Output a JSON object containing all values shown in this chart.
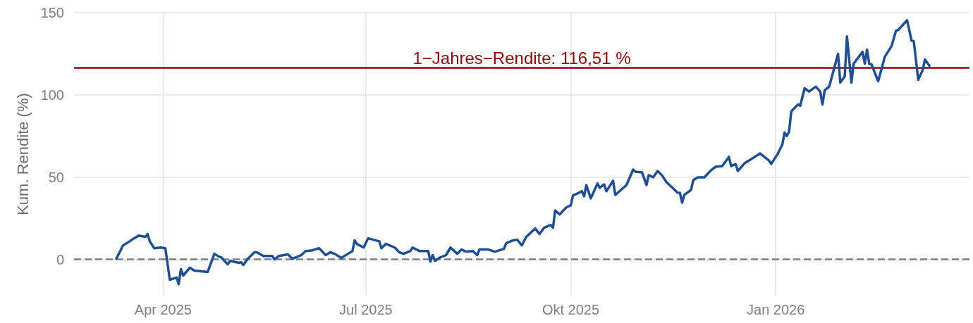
{
  "chart_data": {
    "type": "line",
    "ylabel": "Kum. Rendite (%)",
    "x": [
      "2025-03-11",
      "2025-03-14",
      "2025-03-17",
      "2025-03-19",
      "2025-03-21",
      "2025-03-24",
      "2025-03-25",
      "2025-03-26",
      "2025-03-28",
      "2025-03-31",
      "2025-04-02",
      "2025-04-04",
      "2025-04-07",
      "2025-04-08",
      "2025-04-09",
      "2025-04-10",
      "2025-04-13",
      "2025-04-15",
      "2025-04-21",
      "2025-04-24",
      "2025-04-26",
      "2025-04-27",
      "2025-04-30",
      "2025-05-01",
      "2025-05-05",
      "2025-05-06",
      "2025-05-07",
      "2025-05-09",
      "2025-05-12",
      "2025-05-13",
      "2025-05-16",
      "2025-05-20",
      "2025-05-21",
      "2025-05-23",
      "2025-05-27",
      "2025-05-29",
      "2025-06-02",
      "2025-06-04",
      "2025-06-07",
      "2025-06-10",
      "2025-06-13",
      "2025-06-15",
      "2025-06-17",
      "2025-06-20",
      "2025-06-23",
      "2025-06-25",
      "2025-06-26",
      "2025-06-27",
      "2025-06-30",
      "2025-07-02",
      "2025-07-07",
      "2025-07-08",
      "2025-07-10",
      "2025-07-14",
      "2025-07-16",
      "2025-07-18",
      "2025-07-21",
      "2025-07-22",
      "2025-07-25",
      "2025-07-29",
      "2025-07-30",
      "2025-07-31",
      "2025-08-01",
      "2025-08-03",
      "2025-08-06",
      "2025-08-08",
      "2025-08-11",
      "2025-08-13",
      "2025-08-15",
      "2025-08-18",
      "2025-08-20",
      "2025-08-21",
      "2025-08-25",
      "2025-08-28",
      "2025-09-01",
      "2025-09-02",
      "2025-09-05",
      "2025-09-07",
      "2025-09-09",
      "2025-09-11",
      "2025-09-15",
      "2025-09-17",
      "2025-09-19",
      "2025-09-22",
      "2025-09-23",
      "2025-09-24",
      "2025-09-26",
      "2025-09-29",
      "2025-10-01",
      "2025-10-02",
      "2025-10-06",
      "2025-10-07",
      "2025-10-08",
      "2025-10-10",
      "2025-10-13",
      "2025-10-14",
      "2025-10-16",
      "2025-10-17",
      "2025-10-20",
      "2025-10-21",
      "2025-10-26",
      "2025-10-29",
      "2025-10-30",
      "2025-11-02",
      "2025-11-04",
      "2025-11-05",
      "2025-11-07",
      "2025-11-09",
      "2025-11-11",
      "2025-11-13",
      "2025-11-16",
      "2025-11-18",
      "2025-11-19",
      "2025-11-20",
      "2025-11-21",
      "2025-11-24",
      "2025-11-25",
      "2025-11-27",
      "2025-11-30",
      "2025-12-03",
      "2025-12-05",
      "2025-12-08",
      "2025-12-11",
      "2025-12-12",
      "2025-12-14",
      "2025-12-15",
      "2025-12-18",
      "2025-12-22",
      "2025-12-25",
      "2025-12-29",
      "2025-12-30",
      "2026-01-02",
      "2026-01-04",
      "2026-01-05",
      "2026-01-06",
      "2026-01-07",
      "2026-01-08",
      "2026-01-11",
      "2026-01-12",
      "2026-01-14",
      "2026-01-16",
      "2026-01-19",
      "2026-01-21",
      "2026-01-22",
      "2026-01-23",
      "2026-01-25",
      "2026-01-29",
      "2026-01-30",
      "2026-02-01",
      "2026-02-02",
      "2026-02-04",
      "2026-02-05",
      "2026-02-09",
      "2026-02-10",
      "2026-02-11",
      "2026-02-12",
      "2026-02-13",
      "2026-02-16",
      "2026-02-19",
      "2026-02-22",
      "2026-02-24",
      "2026-02-25",
      "2026-02-27",
      "2026-03-01",
      "2026-03-03",
      "2026-03-04",
      "2026-03-06",
      "2026-03-08",
      "2026-03-09",
      "2026-03-11"
    ],
    "series": [
      {
        "color": "#1f4e99",
        "values": [
          0.4,
          8.5,
          11,
          12.8,
          14.5,
          13.7,
          15.4,
          11,
          6.8,
          7.2,
          6.8,
          -12.4,
          -11,
          -15,
          -6,
          -9.8,
          -5.1,
          -6.8,
          -7.7,
          3.4,
          1.7,
          1.3,
          -3,
          -0.9,
          -2.1,
          -1.7,
          -3.4,
          0.4,
          4.3,
          4.3,
          2.1,
          2.1,
          0,
          2.1,
          3,
          0.4,
          2.6,
          5.1,
          5.5,
          6.8,
          2.6,
          4.3,
          3.4,
          0.9,
          3.4,
          5.1,
          11.5,
          9.4,
          7.2,
          12.8,
          11,
          6.8,
          9.4,
          7.2,
          4.3,
          3.4,
          5.1,
          7.2,
          5.1,
          5.1,
          -1.3,
          2.6,
          -0.9,
          0.9,
          2.6,
          7.2,
          3.4,
          6,
          4.7,
          5.1,
          2.6,
          6,
          6,
          4.7,
          6.4,
          9.8,
          11.5,
          11.9,
          8.5,
          13.6,
          18.8,
          15.4,
          19.2,
          20.9,
          19.2,
          29.8,
          27.3,
          31.6,
          32.8,
          38.8,
          41.4,
          38.4,
          45.2,
          37.1,
          46.1,
          43.5,
          45.6,
          41.4,
          47.8,
          39.2,
          45.2,
          54.6,
          53.3,
          52.9,
          45.2,
          51.2,
          49.9,
          53.7,
          51,
          46.9,
          43.1,
          40.5,
          40.5,
          34.5,
          39.2,
          42.2,
          48.2,
          49.9,
          49.9,
          54.2,
          56.3,
          56.7,
          62.3,
          56.7,
          58,
          53.7,
          58.4,
          61.8,
          64.4,
          60.1,
          58,
          64.4,
          69.9,
          77.2,
          75,
          77.6,
          90,
          94.2,
          93.4,
          104,
          102,
          105,
          102,
          94.2,
          102.8,
          105,
          125,
          107.5,
          111.3,
          135.6,
          107.5,
          119,
          126.2,
          119,
          127.5,
          119,
          118.6,
          108.3,
          123.2,
          129.6,
          139,
          139.4,
          142.4,
          145.4,
          133,
          132.6,
          109.2,
          115.1,
          121.5,
          117.7
        ]
      }
    ],
    "xlim": [
      "2025-02-20",
      "2026-03-29"
    ],
    "xticks": [
      {
        "value": "2025-04-01",
        "label": "Apr 2025"
      },
      {
        "value": "2025-07-01",
        "label": "Jul 2025"
      },
      {
        "value": "2025-10-01",
        "label": "Okt 2025"
      },
      {
        "value": "2026-01-01",
        "label": "Jan 2026"
      }
    ],
    "ylim": [
      -22,
      150
    ],
    "yticks": [
      0,
      50,
      100,
      150
    ],
    "ref_lines": [
      {
        "axis": "y",
        "value": 116.51,
        "label": "1−Jahres−Rendite: 116,51 %",
        "color": "#990000",
        "line_style": "solid"
      },
      {
        "axis": "y",
        "value": 0,
        "color": "#808080",
        "line_style": "dashed"
      }
    ],
    "grid": true,
    "marker": "none",
    "line_style": "solid"
  }
}
